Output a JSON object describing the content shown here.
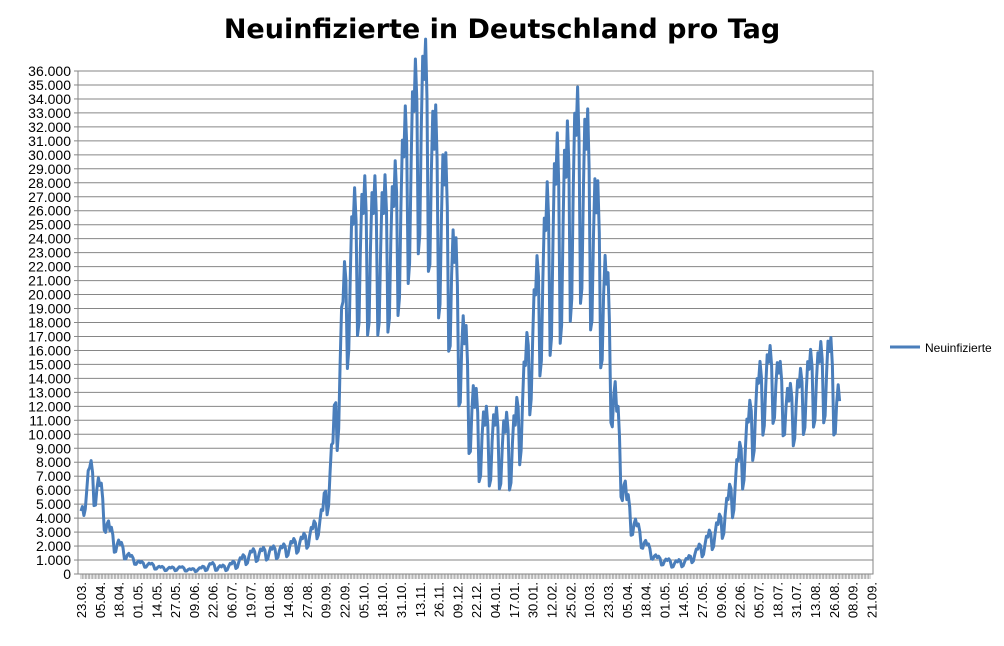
{
  "chart_data": {
    "type": "line",
    "title": "Neuinfizierte in Deutschland pro Tag",
    "xlabel": "",
    "ylabel": "",
    "ylim": [
      0,
      36000
    ],
    "yticks": [
      "0",
      "1.000",
      "2.000",
      "3.000",
      "4.000",
      "5.000",
      "6.000",
      "7.000",
      "8.000",
      "9.000",
      "10.000",
      "11.000",
      "12.000",
      "13.000",
      "14.000",
      "15.000",
      "16.000",
      "17.000",
      "18.000",
      "19.000",
      "20.000",
      "21.000",
      "22.000",
      "23.000",
      "24.000",
      "25.000",
      "26.000",
      "27.000",
      "28.000",
      "29.000",
      "30.000",
      "31.000",
      "32.000",
      "33.000",
      "34.000",
      "35.000",
      "36.000"
    ],
    "xticks": [
      "23.03.",
      "05.04.",
      "18.04.",
      "01.05.",
      "14.05.",
      "27.05.",
      "09.06.",
      "22.06.",
      "06.07.",
      "19.07.",
      "01.08.",
      "14.08.",
      "27.08.",
      "09.09.",
      "22.09.",
      "05.10.",
      "18.10.",
      "31.10.",
      "13.11.",
      "26.11.",
      "09.12.",
      "22.12.",
      "04.01.",
      "17.01.",
      "30.01.",
      "12.02.",
      "25.02.",
      "10.03.",
      "23.03.",
      "05.04.",
      "18.04.",
      "01.05.",
      "14.05.",
      "27.05.",
      "09.06.",
      "22.06.",
      "05.07.",
      "18.07.",
      "31.07.",
      "13.08.",
      "26.08.",
      "08.09.",
      "21.09."
    ],
    "grid": true,
    "legend": "right",
    "series": [
      {
        "name": "Neuinfizierte",
        "color": "#4a7ebb",
        "x": [
          0,
          6,
          13,
          20,
          27,
          34,
          41,
          48,
          55,
          62,
          69,
          76,
          83,
          90,
          97,
          104,
          111,
          118,
          125,
          132,
          139,
          146,
          153,
          160,
          167,
          174,
          181,
          188,
          195,
          202,
          209,
          216,
          223,
          230,
          237,
          244,
          251,
          258,
          265,
          272,
          279,
          286,
          293,
          300,
          307,
          314,
          321,
          328,
          335,
          342,
          349,
          356,
          363,
          370,
          377,
          384,
          391,
          398,
          405,
          412,
          419,
          426,
          433,
          440,
          447,
          454,
          461,
          468,
          475,
          482,
          489,
          496,
          503,
          510,
          517,
          524
        ],
        "values": [
          4000,
          6800,
          5500,
          2600,
          1800,
          1100,
          700,
          600,
          400,
          350,
          400,
          250,
          350,
          550,
          400,
          550,
          900,
          1300,
          1400,
          1500,
          1600,
          1900,
          2200,
          2800,
          4000,
          8000,
          17000,
          22000,
          22500,
          22500,
          22500,
          23000,
          26000,
          29000,
          31000,
          26000,
          24000,
          19000,
          14000,
          10000,
          9000,
          9000,
          8500,
          9000,
          13000,
          17500,
          21000,
          23500,
          24000,
          27000,
          26000,
          22000,
          18000,
          10000,
          4500,
          3000,
          1800,
          1000,
          800,
          700,
          900,
          1500,
          2200,
          3000,
          4500,
          7000,
          9500,
          12000,
          13500,
          13000,
          11000,
          12000,
          13000,
          13500,
          14000,
          11000
        ],
        "oscillation": [
          500,
          1500,
          1500,
          900,
          600,
          300,
          200,
          200,
          150,
          150,
          150,
          120,
          150,
          300,
          200,
          300,
          400,
          500,
          500,
          500,
          500,
          600,
          600,
          800,
          1000,
          2500,
          4500,
          5500,
          6000,
          6000,
          6000,
          6000,
          7000,
          7500,
          8000,
          8000,
          7000,
          6000,
          4500,
          3500,
          3000,
          3000,
          3000,
          3000,
          3500,
          4500,
          6500,
          8000,
          8000,
          8000,
          8000,
          7000,
          5000,
          3000,
          1500,
          800,
          500,
          300,
          300,
          300,
          300,
          500,
          800,
          1000,
          1500,
          2000,
          2500,
          3000,
          3000,
          2500,
          2500,
          2500,
          3000,
          3000,
          3500,
          2500
        ]
      }
    ]
  }
}
